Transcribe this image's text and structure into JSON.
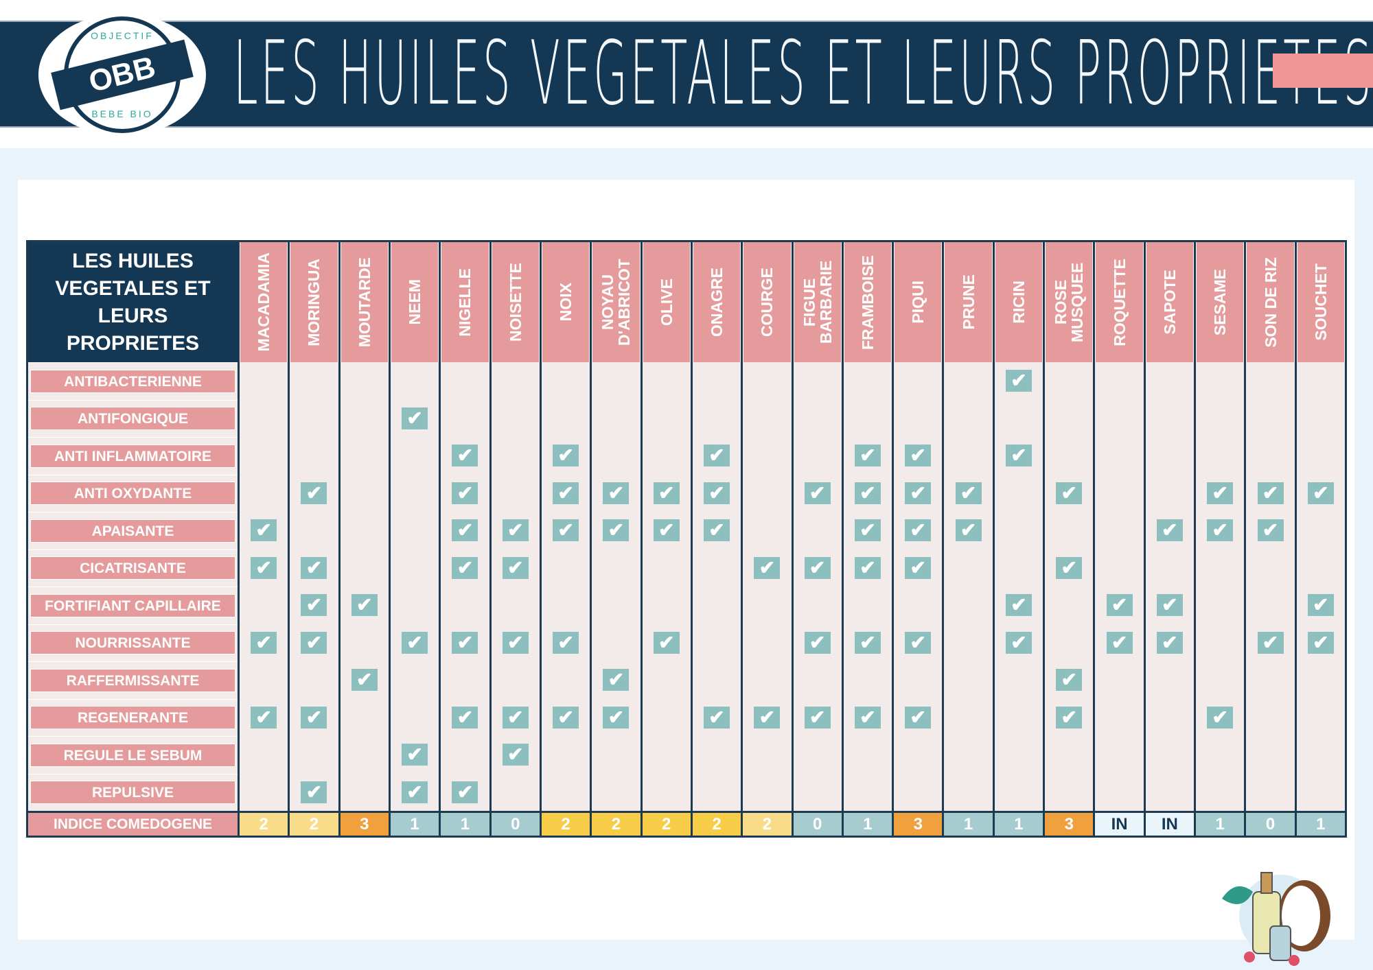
{
  "header": {
    "title": "LES HUILES VEGETALES ET LEURS PROPRIETES",
    "logo": {
      "center": "OBB",
      "top": "OBJECTIF",
      "bottom": "BEBE BIO"
    }
  },
  "table": {
    "corner": "LES HUILES VEGETALES ET LEURS PROPRIETES",
    "oils": [
      "MACADAMIA",
      "MORINGUA",
      "MOUTARDE",
      "NEEM",
      "NIGELLE",
      "NOISETTE",
      "NOIX",
      "NOYAU D'ABRICOT",
      "OLIVE",
      "ONAGRE",
      "COURGE",
      "FIGUE BARBARIE",
      "FRAMBOISE",
      "PIQUI",
      "PRUNE",
      "RICIN",
      "ROSE MUSQUEE",
      "ROQUETTE",
      "SAPOTE",
      "SESAME",
      "SON DE RIZ",
      "SOUCHET"
    ],
    "check_icon": "checkbox-checked-icon",
    "properties": [
      {
        "label": "ANTIBACTERIENNE",
        "checked": [
          "RICIN"
        ]
      },
      {
        "label": "ANTIFONGIQUE",
        "checked": [
          "NEEM"
        ]
      },
      {
        "label": "ANTI INFLAMMATOIRE",
        "checked": [
          "NIGELLE",
          "NOIX",
          "ONAGRE",
          "FRAMBOISE",
          "PIQUI",
          "RICIN"
        ]
      },
      {
        "label": "ANTI OXYDANTE",
        "checked": [
          "MORINGUA",
          "NIGELLE",
          "NOIX",
          "NOYAU D'ABRICOT",
          "OLIVE",
          "ONAGRE",
          "FIGUE BARBARIE",
          "FRAMBOISE",
          "PIQUI",
          "PRUNE",
          "ROSE MUSQUEE",
          "SESAME",
          "SON DE RIZ",
          "SOUCHET"
        ]
      },
      {
        "label": "APAISANTE",
        "checked": [
          "MACADAMIA",
          "NIGELLE",
          "NOISETTE",
          "NOIX",
          "NOYAU D'ABRICOT",
          "OLIVE",
          "ONAGRE",
          "FRAMBOISE",
          "PIQUI",
          "PRUNE",
          "SAPOTE",
          "SESAME",
          "SON DE RIZ"
        ]
      },
      {
        "label": "CICATRISANTE",
        "checked": [
          "MACADAMIA",
          "MORINGUA",
          "NIGELLE",
          "NOISETTE",
          "COURGE",
          "FIGUE BARBARIE",
          "FRAMBOISE",
          "PIQUI",
          "ROSE MUSQUEE"
        ]
      },
      {
        "label": "FORTIFIANT CAPILLAIRE",
        "checked": [
          "MORINGUA",
          "MOUTARDE",
          "RICIN",
          "ROQUETTE",
          "SAPOTE",
          "SOUCHET"
        ]
      },
      {
        "label": "NOURRISSANTE",
        "checked": [
          "MACADAMIA",
          "MORINGUA",
          "NEEM",
          "NIGELLE",
          "NOISETTE",
          "NOIX",
          "OLIVE",
          "FIGUE BARBARIE",
          "FRAMBOISE",
          "PIQUI",
          "RICIN",
          "ROQUETTE",
          "SAPOTE",
          "SON DE RIZ",
          "SOUCHET"
        ]
      },
      {
        "label": "RAFFERMISSANTE",
        "checked": [
          "MOUTARDE",
          "NOYAU D'ABRICOT",
          "ROSE MUSQUEE"
        ]
      },
      {
        "label": "REGENERANTE",
        "checked": [
          "MACADAMIA",
          "MORINGUA",
          "NIGELLE",
          "NOISETTE",
          "NOIX",
          "NOYAU D'ABRICOT",
          "ONAGRE",
          "COURGE",
          "FIGUE BARBARIE",
          "FRAMBOISE",
          "PIQUI",
          "ROSE MUSQUEE",
          "SESAME"
        ]
      },
      {
        "label": "REGULE LE SEBUM",
        "checked": [
          "NEEM",
          "NOISETTE"
        ]
      },
      {
        "label": "REPULSIVE",
        "checked": [
          "MORINGUA",
          "NEEM",
          "NIGELLE"
        ]
      }
    ],
    "comedogene": {
      "label": "INDICE COMEDOGENE",
      "values": [
        "2",
        "2",
        "3",
        "1",
        "1",
        "0",
        "2",
        "2",
        "2",
        "2",
        "2",
        "0",
        "1",
        "3",
        "1",
        "1",
        "3",
        "IN",
        "IN",
        "1",
        "0",
        "1"
      ],
      "colors": [
        "#f9dc8a",
        "#f9dc8a",
        "#f0a03c",
        "#a7ccd0",
        "#a7ccd0",
        "#a7ccd0",
        "#f7cd47",
        "#f7cd47",
        "#f7cd47",
        "#f7cd47",
        "#f9dc8a",
        "#a7ccd0",
        "#a7ccd0",
        "#f0a03c",
        "#a7ccd0",
        "#a7ccd0",
        "#f0a03c",
        "#eaf4fb",
        "#eaf4fb",
        "#a7ccd0",
        "#a7ccd0",
        "#a7ccd0"
      ]
    }
  },
  "colors": {
    "navy": "#143853",
    "pink": "#e59b9b",
    "check": "#8ebfbf",
    "cell": "#f3ebea"
  }
}
